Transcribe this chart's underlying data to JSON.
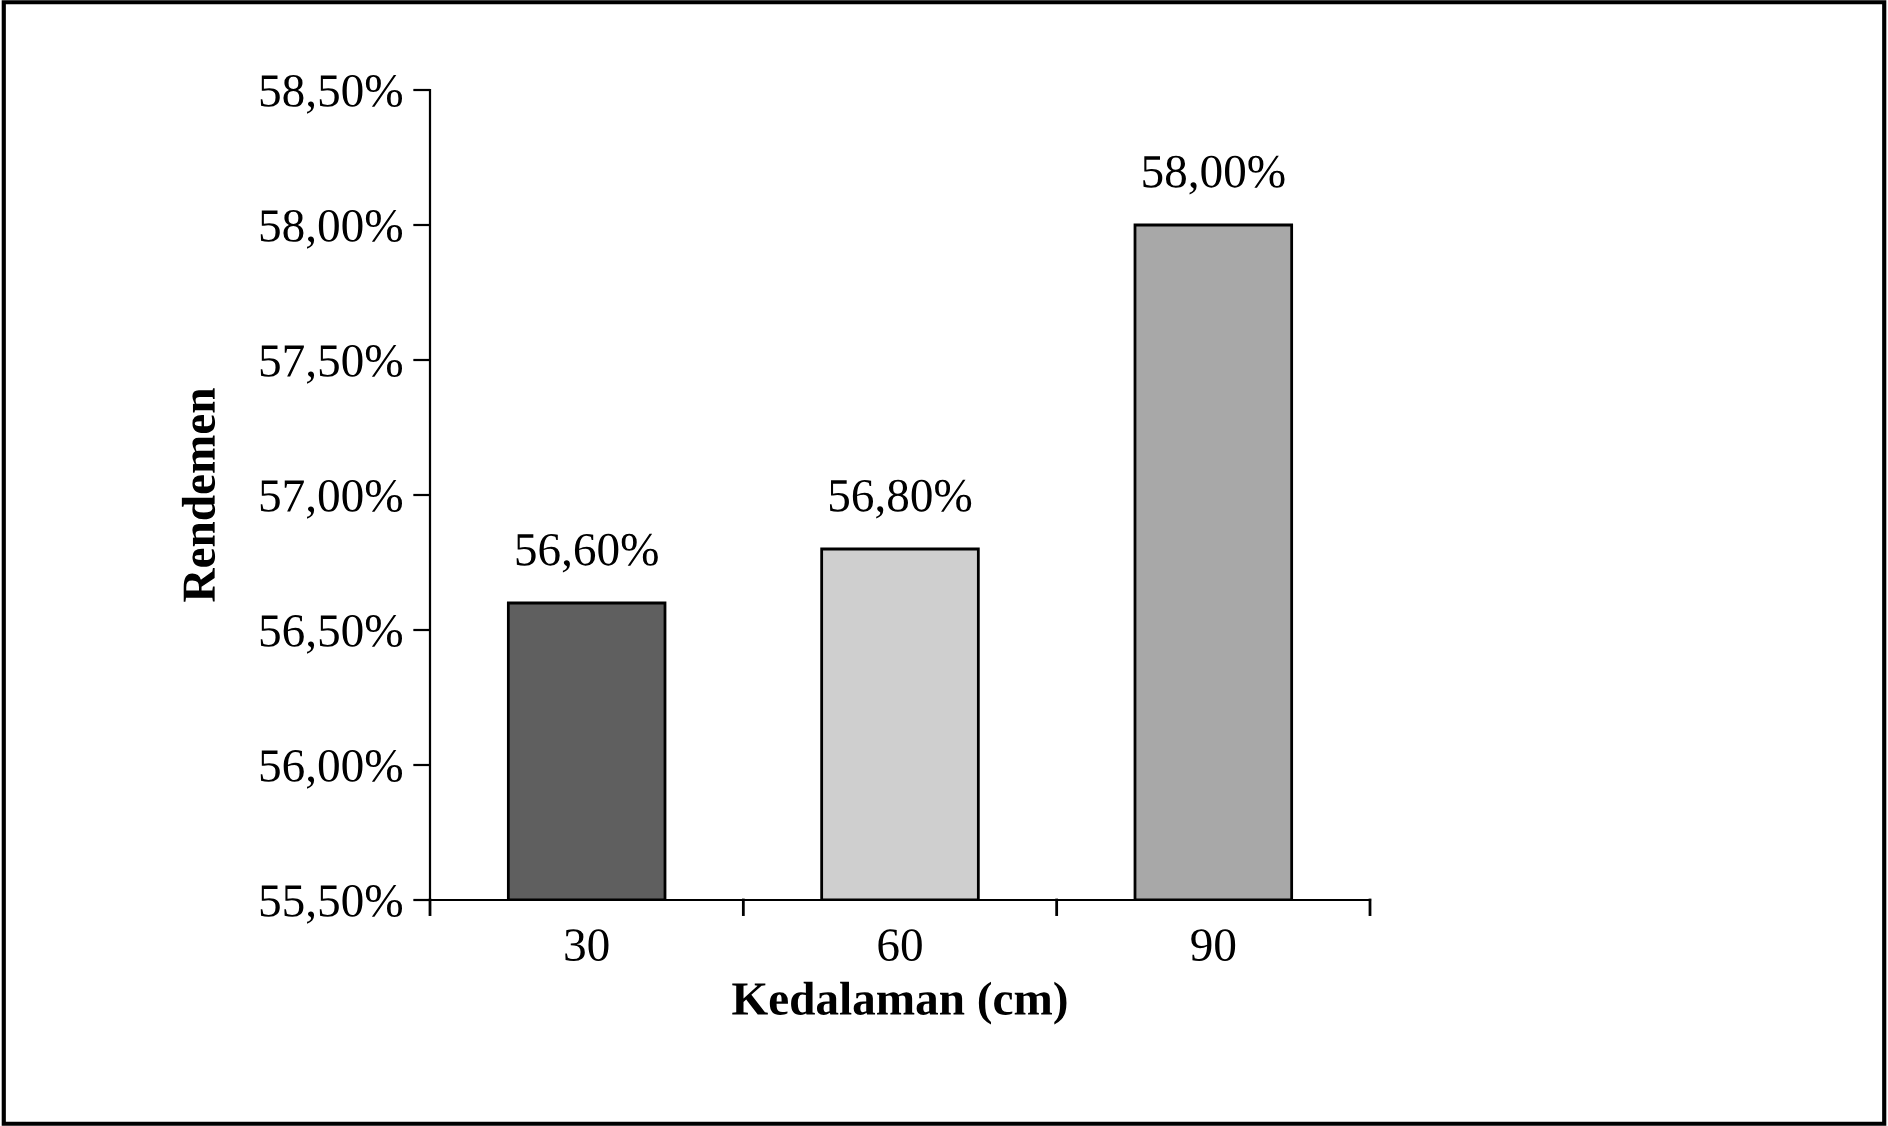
{
  "chart_data": {
    "type": "bar",
    "xlabel": "Kedalaman (cm)",
    "ylabel": "Rendemen",
    "categories": [
      "30",
      "60",
      "90"
    ],
    "values": [
      56.6,
      56.8,
      58.0
    ],
    "colors": [
      "#5f5f5f",
      "#cfcfcf",
      "#a8a8a8"
    ],
    "value_labels": [
      "56,60%",
      "56,80%",
      "58,00%"
    ],
    "ylim": [
      55.5,
      58.5
    ],
    "yticks": [
      {
        "value": 55.5,
        "label": "55,50%"
      },
      {
        "value": 56.0,
        "label": "56,00%"
      },
      {
        "value": 56.5,
        "label": "56,50%"
      },
      {
        "value": 57.0,
        "label": "57,00%"
      },
      {
        "value": 57.5,
        "label": "57,50%"
      },
      {
        "value": 58.0,
        "label": "58,00%"
      },
      {
        "value": 58.5,
        "label": "58,50%"
      }
    ],
    "grid": false,
    "legend": false
  }
}
